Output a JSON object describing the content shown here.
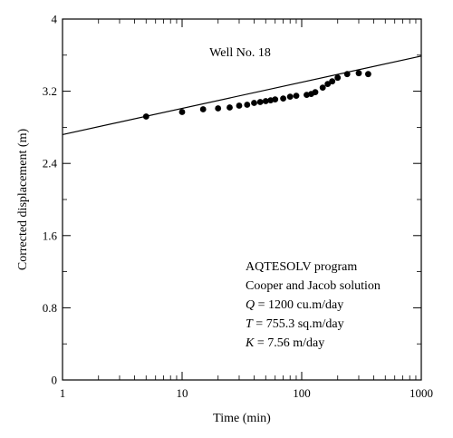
{
  "chart_data": {
    "type": "scatter",
    "title": "Well No. 18",
    "xlabel": "Time (min)",
    "ylabel": "Corrected displacement (m)",
    "x_scale": "log",
    "xlim": [
      1,
      1000
    ],
    "ylim": [
      0,
      4
    ],
    "x_ticks": [
      "1",
      "10",
      "100",
      "1000"
    ],
    "y_ticks": [
      "0",
      "0.8",
      "1.6",
      "2.4",
      "3.2",
      "4"
    ],
    "grid": false,
    "legend": "none",
    "annotations": [
      {
        "parts": [
          {
            "text": "AQTESOLV program",
            "italic": false
          }
        ]
      },
      {
        "parts": [
          {
            "text": "Cooper and Jacob solution",
            "italic": false
          }
        ]
      },
      {
        "parts": [
          {
            "text": "Q",
            "italic": true
          },
          {
            "text": " = 1200 cu.m/day",
            "italic": false
          }
        ]
      },
      {
        "parts": [
          {
            "text": "T",
            "italic": true
          },
          {
            "text": " = 755.3 sq.m/day",
            "italic": false
          }
        ]
      },
      {
        "parts": [
          {
            "text": "K",
            "italic": true
          },
          {
            "text": " = 7.56 m/day",
            "italic": false
          }
        ]
      }
    ],
    "series": [
      {
        "kind": "points",
        "x": [
          5,
          10,
          15,
          20,
          25,
          30,
          35,
          40,
          45,
          50,
          55,
          60,
          70,
          80,
          90,
          110,
          120,
          130,
          150,
          165,
          180,
          200,
          240,
          300,
          360
        ],
        "y": [
          2.92,
          2.97,
          3.0,
          3.01,
          3.02,
          3.04,
          3.05,
          3.07,
          3.08,
          3.09,
          3.1,
          3.11,
          3.12,
          3.14,
          3.15,
          3.16,
          3.17,
          3.19,
          3.24,
          3.28,
          3.31,
          3.35,
          3.39,
          3.4,
          3.39
        ]
      },
      {
        "kind": "fitted-line",
        "x": [
          1,
          1000
        ],
        "y": [
          2.72,
          3.59
        ]
      }
    ]
  }
}
